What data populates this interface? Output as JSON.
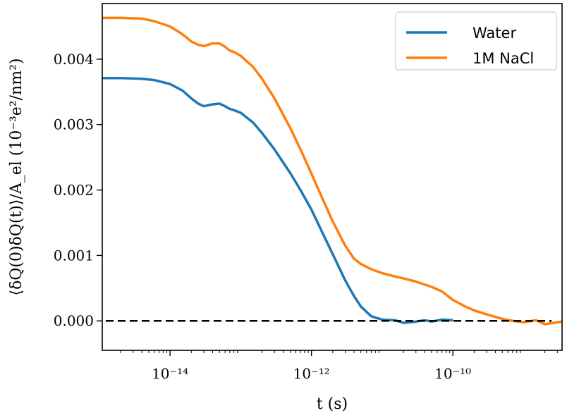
{
  "chart_data": {
    "type": "line",
    "xlabel": "t (s)",
    "ylabel": "⟨δQ(0)δQ(t)⟩/A_el (10⁻³e²/nm²)",
    "x_scale": "log",
    "xlim": [
      1.1e-15,
      3.5e-09
    ],
    "ylim": [
      -0.00045,
      0.00485
    ],
    "x_ticks": [
      {
        "value": 1e-14,
        "label": "10⁻¹⁴"
      },
      {
        "value": 1e-12,
        "label": "10⁻¹²"
      },
      {
        "value": 1e-10,
        "label": "10⁻¹⁰"
      }
    ],
    "y_ticks": [
      {
        "value": 0.0,
        "label": "0.000"
      },
      {
        "value": 0.001,
        "label": "0.001"
      },
      {
        "value": 0.002,
        "label": "0.002"
      },
      {
        "value": 0.003,
        "label": "0.003"
      },
      {
        "value": 0.004,
        "label": "0.004"
      }
    ],
    "reference_line": {
      "y": 0,
      "style": "dashed",
      "color": "#000000"
    },
    "grid": false,
    "legend_position": "top-right",
    "series": [
      {
        "name": "Water",
        "color": "#1f77b4",
        "x": [
          1.1e-15,
          2e-15,
          4e-15,
          6e-15,
          1e-14,
          1.5e-14,
          2e-14,
          2.5e-14,
          3e-14,
          4e-14,
          5e-14,
          6e-14,
          7e-14,
          8e-14,
          1e-13,
          1.5e-13,
          2e-13,
          3e-13,
          5e-13,
          7e-13,
          1e-12,
          1.5e-12,
          2e-12,
          3e-12,
          4e-12,
          5e-12,
          7e-12,
          1e-11,
          1.5e-11,
          2e-11,
          2.5e-11,
          3e-11,
          4e-11,
          5e-11,
          7e-11,
          1e-10
        ],
        "y": [
          0.00371,
          0.00371,
          0.0037,
          0.00368,
          0.00362,
          0.00352,
          0.0034,
          0.00332,
          0.00328,
          0.00331,
          0.00332,
          0.00328,
          0.00324,
          0.00322,
          0.00318,
          0.00303,
          0.00287,
          0.00262,
          0.00226,
          0.002,
          0.0017,
          0.0013,
          0.00102,
          0.00062,
          0.00038,
          0.00022,
          7e-05,
          2e-05,
          1e-05,
          -3e-05,
          -2e-05,
          -1e-05,
          1e-05,
          -1e-05,
          2e-05,
          1e-05
        ]
      },
      {
        "name": "1M NaCl",
        "color": "#ff7f0e",
        "x": [
          1.1e-15,
          2e-15,
          4e-15,
          6e-15,
          1e-14,
          1.5e-14,
          2e-14,
          2.5e-14,
          3e-14,
          4e-14,
          5e-14,
          6e-14,
          7e-14,
          8e-14,
          1e-13,
          1.5e-13,
          2e-13,
          3e-13,
          5e-13,
          7e-13,
          1e-12,
          1.5e-12,
          2e-12,
          3e-12,
          4e-12,
          5e-12,
          7e-12,
          1e-11,
          1.5e-11,
          2e-11,
          3e-11,
          5e-11,
          7e-11,
          1e-10,
          1.5e-10,
          2e-10,
          3e-10,
          5e-10,
          7e-10,
          1e-09,
          1.5e-09,
          2e-09,
          3.5e-09
        ],
        "y": [
          0.00463,
          0.00463,
          0.00462,
          0.00458,
          0.0045,
          0.00438,
          0.00427,
          0.00422,
          0.0042,
          0.00424,
          0.00424,
          0.00419,
          0.00413,
          0.00411,
          0.00405,
          0.00388,
          0.0037,
          0.0034,
          0.00295,
          0.00262,
          0.00225,
          0.00182,
          0.00152,
          0.00115,
          0.00095,
          0.00087,
          0.00079,
          0.00073,
          0.00068,
          0.00065,
          0.0006,
          0.00052,
          0.00045,
          0.00032,
          0.00022,
          0.00016,
          0.0001,
          3e-05,
          0.0,
          -2e-05,
          1e-05,
          -5e-05,
          -1e-05
        ]
      }
    ]
  }
}
